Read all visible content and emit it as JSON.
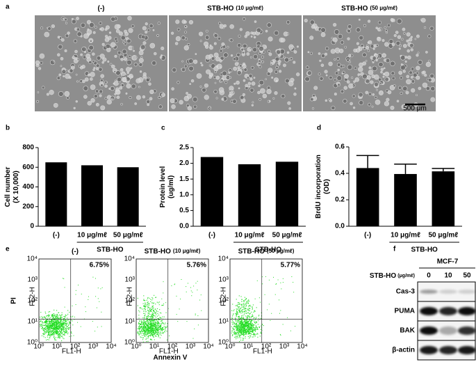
{
  "panel_labels": [
    "a",
    "b",
    "c",
    "d",
    "e",
    "f"
  ],
  "micrographs": {
    "titles": [
      {
        "name": "(-)"
      },
      {
        "name": "STB-HO",
        "dose": "(10 μg/mℓ)"
      },
      {
        "name": "STB-HO",
        "dose": "(50 μg/mℓ)"
      }
    ],
    "scale_bar": "500 μm"
  },
  "chart_data": [
    {
      "type": "bar",
      "ylabel": [
        "Cell number",
        "(X 10,000)"
      ],
      "categories": [
        "(-)",
        "10 μg/mℓ",
        "50 μg/mℓ"
      ],
      "values": [
        650,
        620,
        600
      ],
      "color": "#000000",
      "group_label": "STB-HO",
      "ylim": [
        0,
        800
      ],
      "yticks": [
        0,
        200,
        400,
        600,
        800
      ]
    },
    {
      "type": "bar",
      "ylabel": [
        "Protein level",
        "(ug/ml)"
      ],
      "categories": [
        "(-)",
        "10 μg/mℓ",
        "50 μg/mℓ"
      ],
      "values": [
        2.2,
        1.97,
        2.05
      ],
      "color": "#000000",
      "group_label": "STB-HO",
      "ylim": [
        0,
        2.5
      ],
      "yticks": [
        {
          "value": 0,
          "label": "0.0"
        },
        0.5,
        {
          "value": 1,
          "label": "1.0"
        },
        1.5,
        {
          "value": 2,
          "label": "2.0"
        },
        2.5
      ]
    },
    {
      "type": "bar",
      "ylabel": [
        "BrdU incorporation",
        "(OD)"
      ],
      "categories": [
        "(-)",
        "10 μg/mℓ",
        "50 μg/mℓ"
      ],
      "values": [
        0.44,
        0.395,
        0.415
      ],
      "errors": [
        0.095,
        0.075,
        0.022
      ],
      "color": "#000000",
      "group_label": "STB-HO",
      "ylim": [
        0,
        0.6
      ],
      "yticks": [
        {
          "value": 0,
          "label": "0.0"
        },
        0.2,
        0.4,
        0.6
      ]
    }
  ],
  "flow": {
    "titles": [
      {
        "name": "(-)"
      },
      {
        "name": "STB-HO",
        "dose": "(10 μg/mℓ)"
      },
      {
        "name": "STB-HO",
        "dose": "(50 μg/mℓ)"
      }
    ],
    "percentages": [
      "6.75%",
      "5.76%",
      "5.77%"
    ],
    "ylabel": "PI",
    "xlabel": "Annexin V",
    "x_channel": "FL1-H",
    "y_channel": "FL2-H",
    "ticks": [
      "10⁰",
      "10¹",
      "10²",
      "10³",
      "10⁴"
    ]
  },
  "blot": {
    "cell_line": "MCF-7",
    "treatment": "STB-HO",
    "unit": "(μg/mℓ)",
    "lanes": [
      "0",
      "10",
      "50"
    ],
    "rows": [
      "Cas-3",
      "PUMA",
      "BAK",
      "β-actin"
    ]
  }
}
